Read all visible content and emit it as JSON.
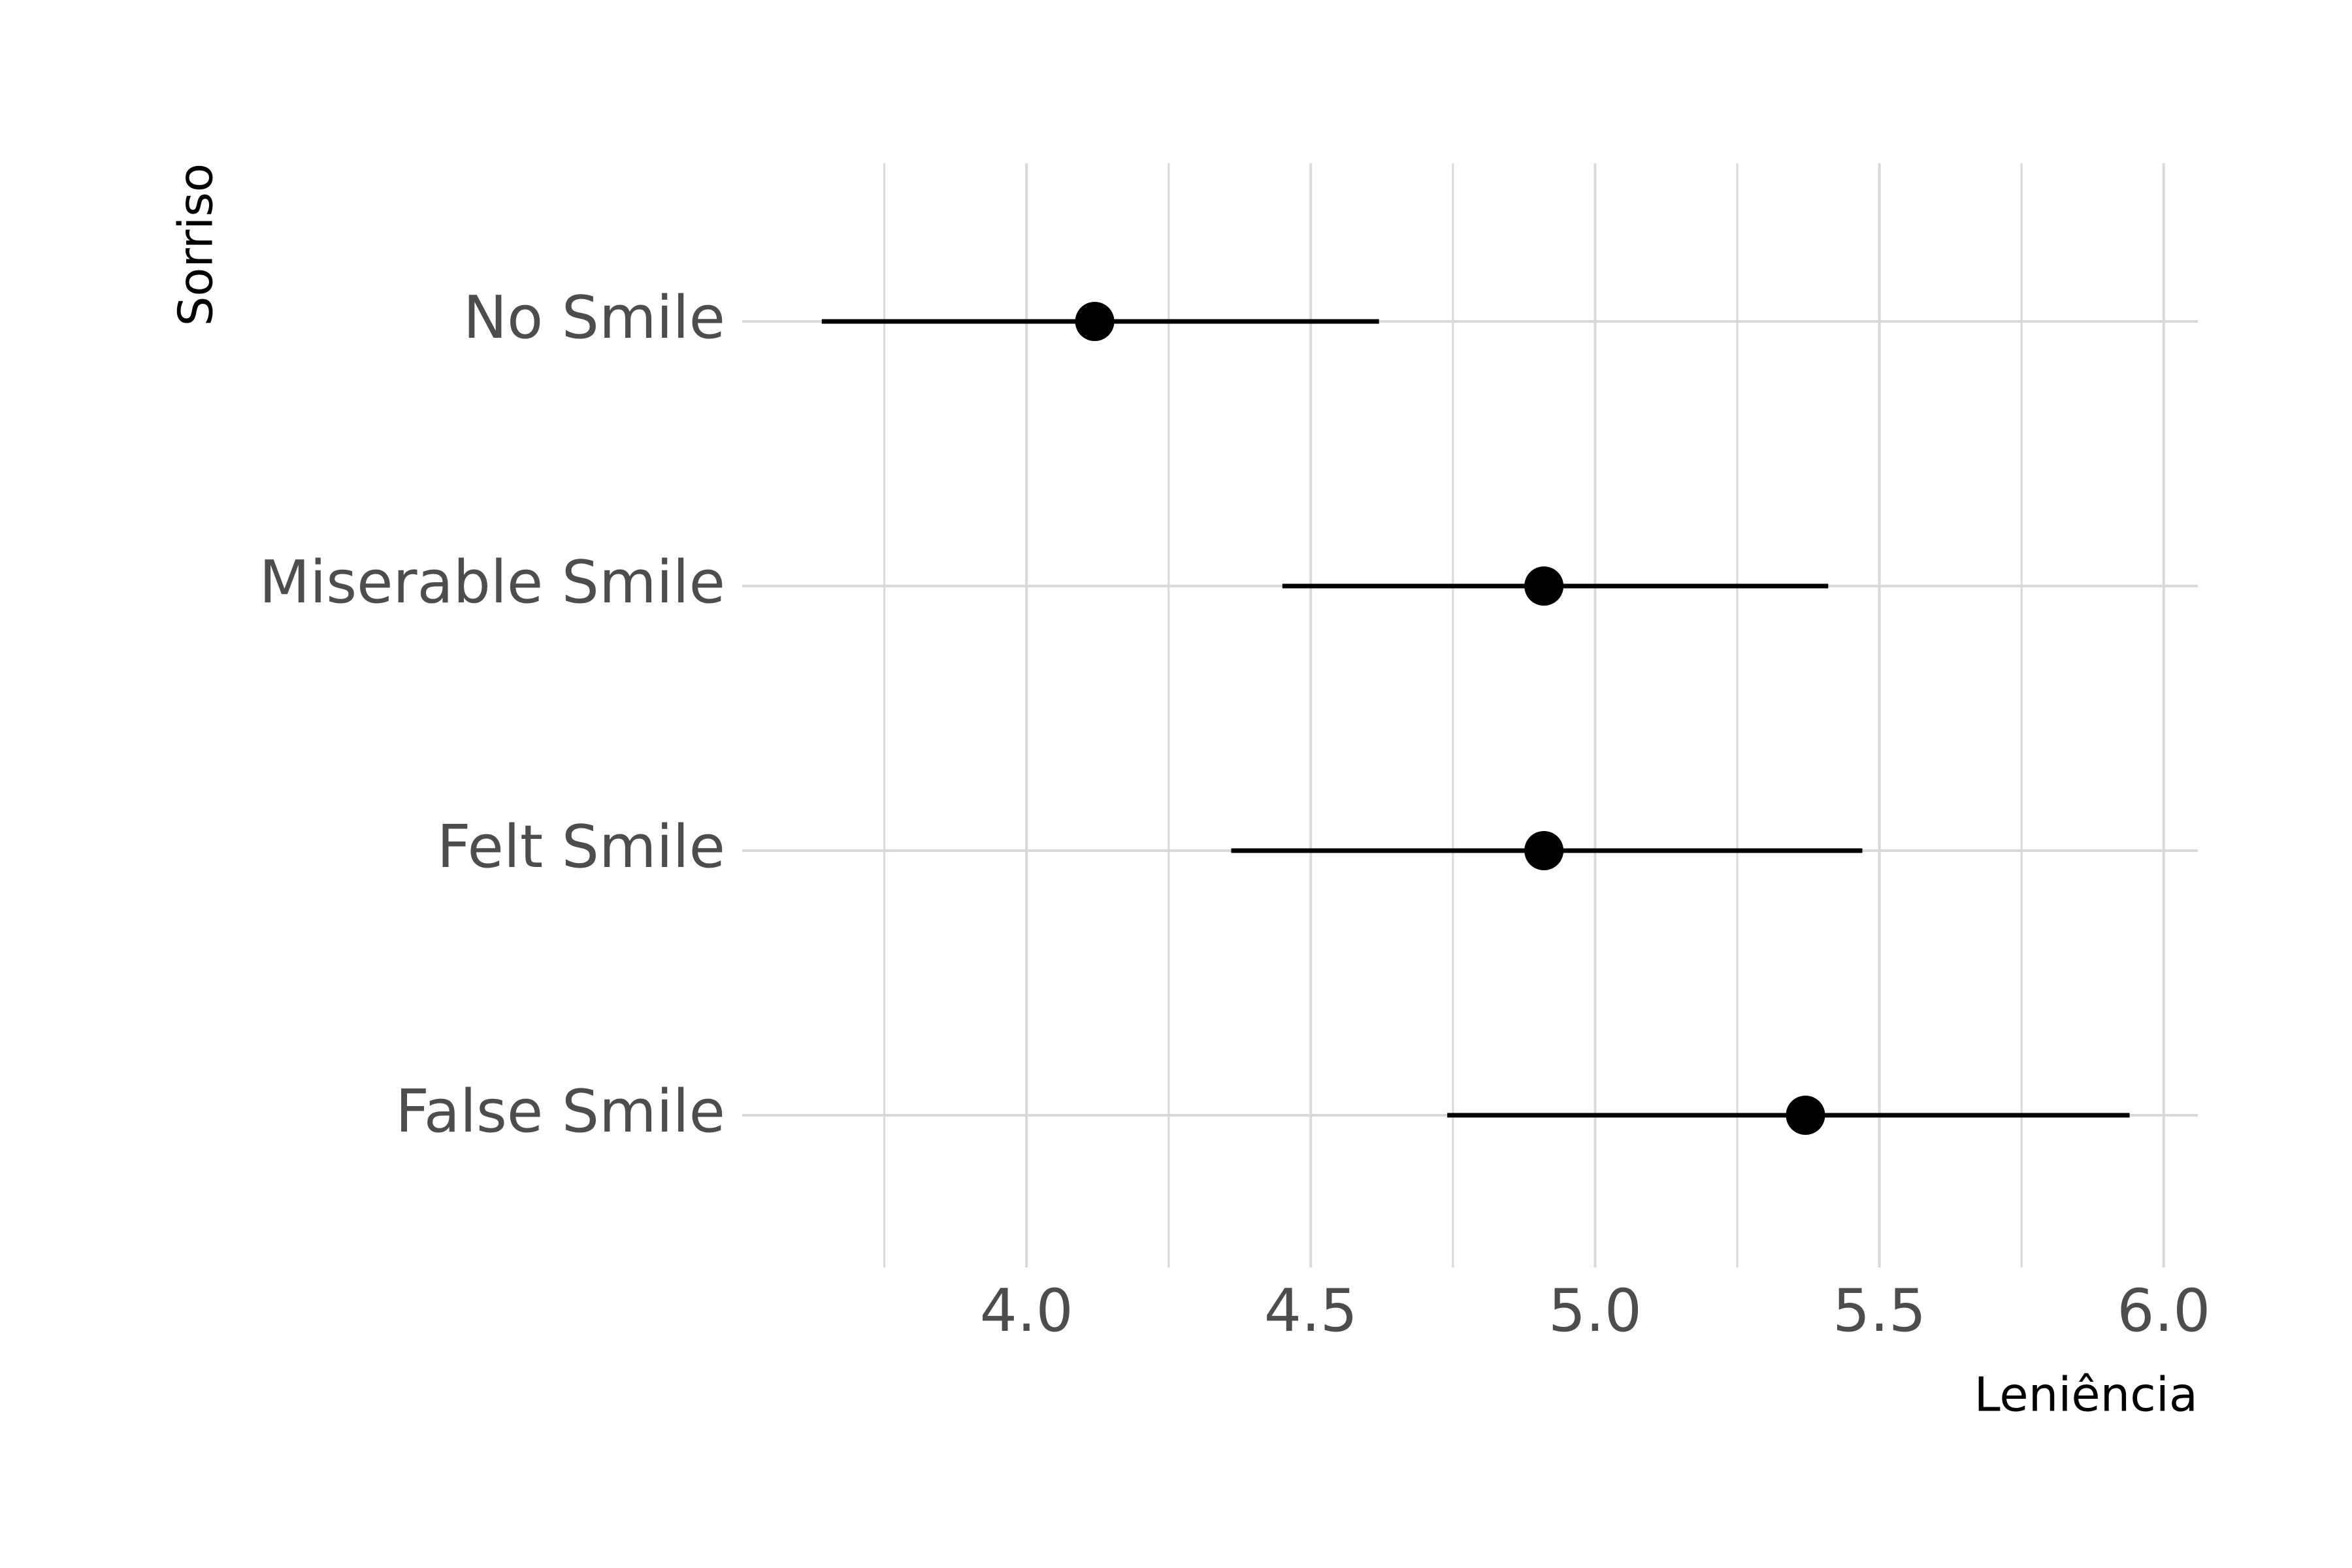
{
  "chart_data": {
    "type": "pointrange",
    "orientation": "horizontal",
    "xlabel": "Leniência",
    "ylabel": "Sorriso",
    "xlim": [
      3.5,
      6.06
    ],
    "xticks": [
      4.0,
      4.5,
      5.0,
      5.5,
      6.0
    ],
    "xtick_labels": [
      "4.0",
      "4.5",
      "5.0",
      "5.5",
      "6.0"
    ],
    "categories": [
      "No Smile",
      "Miserable Smile",
      "Felt Smile",
      "False Smile"
    ],
    "points": [
      {
        "category": "No Smile",
        "estimate": 4.12,
        "lower": 3.64,
        "upper": 4.62
      },
      {
        "category": "Miserable Smile",
        "estimate": 4.91,
        "lower": 4.45,
        "upper": 5.41
      },
      {
        "category": "Felt Smile",
        "estimate": 4.91,
        "lower": 4.36,
        "upper": 5.47
      },
      {
        "category": "False Smile",
        "estimate": 5.37,
        "lower": 4.74,
        "upper": 5.94
      }
    ],
    "grid": true,
    "legend": "none",
    "colors": {
      "point": "#000000",
      "grid": "#d9d9d9",
      "tick_text": "#4d4d4d"
    }
  }
}
